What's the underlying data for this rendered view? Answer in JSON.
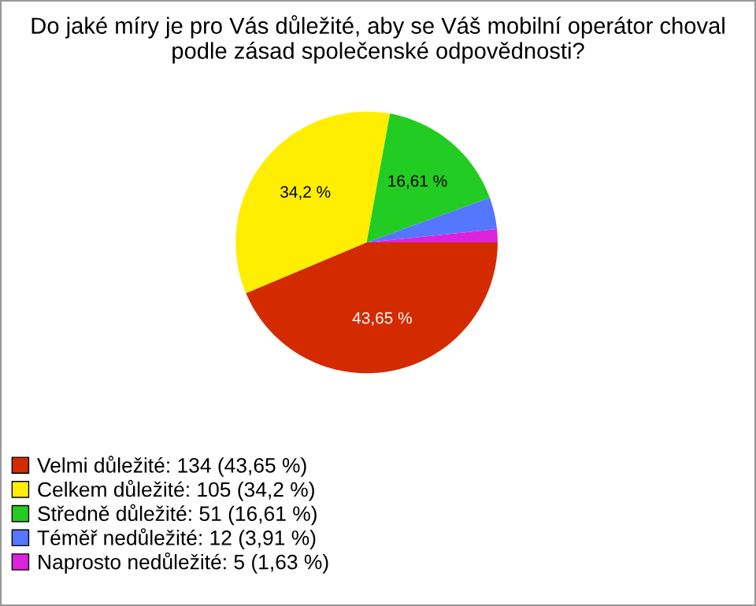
{
  "chart_data": {
    "type": "pie",
    "title": "Do jaké míry je pro Vás důležité, aby se Váš mobilní operátor choval podle zásad společenské odpovědnosti?",
    "categories": [
      "Velmi důležité: 134 (43,65 %)",
      "Celkem důležité: 105 (34,2 %)",
      "Středně důležité: 51 (16,61 %)",
      "Téměř nedůležité: 12 (3,91 %)",
      "Naprosto nedůležité: 5 (1,63 %)"
    ],
    "values": [
      43.65,
      34.2,
      16.61,
      3.91,
      1.63
    ],
    "value_labels": [
      "43,65 %",
      "34,2 %",
      "16,61 %",
      null,
      null
    ],
    "colors": [
      "#d42a00",
      "#ffee00",
      "#22cc22",
      "#5577ff",
      "#dd22dd"
    ],
    "legend": "bottom left"
  }
}
